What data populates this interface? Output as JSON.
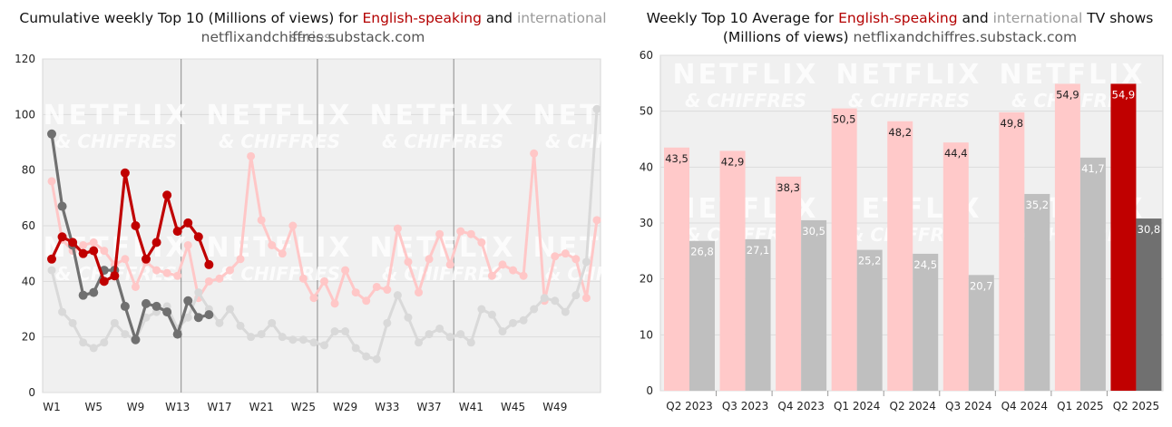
{
  "colors": {
    "english": "#c00000",
    "international": "#707070",
    "english_faded": "#ffc7c7",
    "international_faded": "#d9d9d9",
    "english_bar": "#ffc9c9",
    "international_bar": "#bfbfbf",
    "plot_bg": "#f0f0f0"
  },
  "watermark": {
    "line1": "NETFLIX",
    "line2": "& CHIFFRES"
  },
  "left": {
    "title_pre": "Cumulative weekly Top 10 (Millions of views) for ",
    "title_en": "English-speaking",
    "title_mid": " and ",
    "title_intl": "international series.",
    "source": "netflixandchiffres.substack.com"
  },
  "right": {
    "title_pre": "Weekly Top 10 Average for ",
    "title_en": "English-speaking",
    "title_mid": " and ",
    "title_intl": "international",
    "title_post": " TV shows",
    "subtitle_pre": "(Millions of views) ",
    "source": "netflixandchiffres.substack.com"
  },
  "chart_data": [
    {
      "type": "line",
      "title": "Cumulative weekly Top 10 (Millions of views) for English-speaking and international series.",
      "ylim": [
        0,
        120
      ],
      "yticks": [
        0,
        20,
        40,
        60,
        80,
        100,
        120
      ],
      "xlim": [
        1,
        53
      ],
      "xtick_positions": [
        1,
        5,
        9,
        13,
        17,
        21,
        25,
        29,
        33,
        37,
        41,
        45,
        49
      ],
      "xtick_labels": [
        "W1",
        "W5",
        "W9",
        "W13",
        "W17",
        "W21",
        "W25",
        "W29",
        "W33",
        "W37",
        "W41",
        "W45",
        "W49"
      ],
      "vlines": [
        13,
        26,
        39
      ],
      "grid": true,
      "legend": "none",
      "series": [
        {
          "style": "english_faded",
          "x": [
            1,
            2,
            3,
            4,
            5,
            6,
            7,
            8,
            9,
            10,
            11,
            12,
            13,
            14,
            15,
            16,
            17,
            18,
            19,
            20,
            21,
            22,
            23,
            24,
            25,
            26,
            27,
            28,
            29,
            30,
            31,
            32,
            33,
            34,
            35,
            36,
            37,
            38,
            39,
            40,
            41,
            42,
            43,
            44,
            45,
            46,
            47,
            48,
            49,
            50,
            51,
            52,
            53
          ],
          "values": [
            76,
            55,
            51,
            53,
            54,
            51,
            46,
            48,
            38,
            47,
            44,
            43,
            42,
            53,
            34,
            40,
            41,
            44,
            48,
            85,
            62,
            53,
            50,
            60,
            41,
            34,
            40,
            32,
            44,
            36,
            33,
            38,
            37,
            59,
            47,
            36,
            48,
            57,
            46,
            58,
            57,
            54,
            42,
            46,
            44,
            42,
            86,
            33,
            49,
            50,
            48,
            34,
            62
          ]
        },
        {
          "style": "international_faded",
          "x": [
            1,
            2,
            3,
            4,
            5,
            6,
            7,
            8,
            9,
            10,
            11,
            12,
            13,
            14,
            15,
            16,
            17,
            18,
            19,
            20,
            21,
            22,
            23,
            24,
            25,
            26,
            27,
            28,
            29,
            30,
            31,
            32,
            33,
            34,
            35,
            36,
            37,
            38,
            39,
            40,
            41,
            42,
            43,
            44,
            45,
            46,
            47,
            48,
            49,
            50,
            51,
            52,
            53
          ],
          "values": [
            44,
            29,
            25,
            18,
            16,
            18,
            25,
            21,
            19,
            27,
            29,
            31,
            23,
            27,
            36,
            30,
            25,
            30,
            24,
            20,
            21,
            25,
            20,
            19,
            19,
            18,
            17,
            22,
            22,
            16,
            13,
            12,
            25,
            35,
            27,
            18,
            21,
            23,
            20,
            21,
            18,
            30,
            28,
            22,
            25,
            26,
            30,
            34,
            33,
            29,
            35,
            47,
            102
          ]
        },
        {
          "style": "international",
          "x": [
            1,
            2,
            3,
            4,
            5,
            6,
            7,
            8,
            9,
            10,
            11,
            12,
            13,
            14,
            15,
            16
          ],
          "values": [
            93,
            67,
            53,
            35,
            36,
            44,
            44,
            31,
            19,
            32,
            31,
            29,
            21,
            33,
            27,
            28
          ]
        },
        {
          "style": "english",
          "x": [
            1,
            2,
            3,
            4,
            5,
            6,
            7,
            8,
            9,
            10,
            11,
            12,
            13,
            14,
            15,
            16
          ],
          "values": [
            48,
            56,
            54,
            50,
            51,
            40,
            42,
            79,
            60,
            48,
            54,
            71,
            58,
            61,
            56,
            46
          ]
        }
      ]
    },
    {
      "type": "bar",
      "title": "Weekly Top 10 Average for English-speaking and international TV shows (Millions of views)",
      "categories": [
        "Q2 2023",
        "Q3 2023",
        "Q4 2023",
        "Q1 2024",
        "Q2 2024",
        "Q3 2024",
        "Q4 2024",
        "Q1 2025",
        "Q2 2025"
      ],
      "ylim": [
        0,
        60
      ],
      "yticks": [
        0,
        10,
        20,
        30,
        40,
        50,
        60
      ],
      "grid": true,
      "legend": "none",
      "series": [
        {
          "style": "english",
          "values": [
            43.5,
            42.9,
            38.3,
            50.5,
            48.2,
            44.4,
            49.8,
            54.9,
            54.9
          ],
          "labels": [
            "43,5",
            "42,9",
            "38,3",
            "50,5",
            "48,2",
            "44,4",
            "49,8",
            "54,9",
            "54,9"
          ]
        },
        {
          "style": "international",
          "values": [
            26.8,
            27.1,
            30.5,
            25.2,
            24.5,
            20.7,
            35.2,
            41.7,
            30.8
          ],
          "labels": [
            "26,8",
            "27,1",
            "30,5",
            "25,2",
            "24,5",
            "20,7",
            "35,2",
            "41,7",
            "30,8"
          ]
        }
      ],
      "highlight_category": "Q2 2025"
    }
  ]
}
